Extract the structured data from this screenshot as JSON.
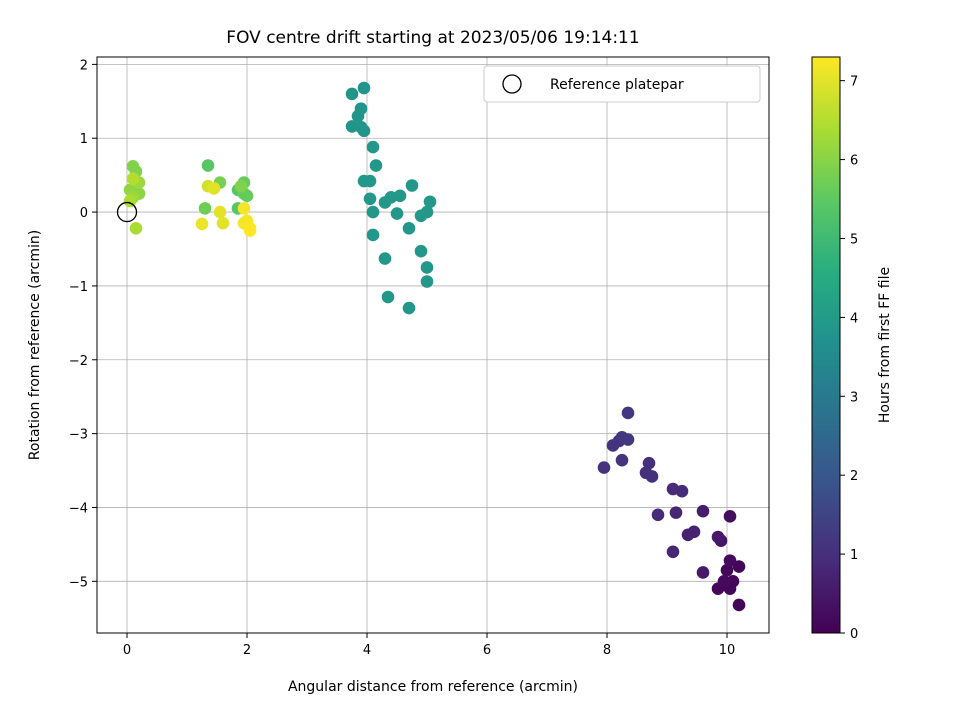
{
  "chart_data": {
    "type": "scatter",
    "title": "FOV centre drift starting at 2023/05/06 19:14:11",
    "xlabel": "Angular distance from reference (arcmin)",
    "ylabel": "Rotation from reference (arcmin)",
    "xlim": [
      -0.5,
      10.7
    ],
    "ylim": [
      -5.7,
      2.1
    ],
    "xticks": [
      0,
      2,
      4,
      6,
      8,
      10
    ],
    "yticks": [
      2,
      1,
      0,
      -1,
      -2,
      -3,
      -4,
      -5
    ],
    "xtick_labels": [
      "0",
      "2",
      "4",
      "6",
      "8",
      "10"
    ],
    "ytick_labels": [
      "2",
      "1",
      "0",
      "−1",
      "−2",
      "−3",
      "−4",
      "−5"
    ],
    "grid": true,
    "legend": {
      "placement": "top-right",
      "entries": [
        "Reference platepar"
      ]
    },
    "reference_point": {
      "x": 0,
      "y": 0,
      "label": "Reference platepar"
    },
    "colorbar": {
      "label": "Hours from first FF file",
      "colormap": "viridis",
      "range": [
        0,
        7.3
      ],
      "ticks": [
        0,
        1,
        2,
        3,
        4,
        5,
        6,
        7
      ],
      "tick_labels": [
        "0",
        "1",
        "2",
        "3",
        "4",
        "5",
        "6",
        "7"
      ]
    },
    "points": [
      {
        "x": 10.2,
        "y": -4.8,
        "h": 0.1
      },
      {
        "x": 10.0,
        "y": -4.85,
        "h": 0.1
      },
      {
        "x": 10.1,
        "y": -5.0,
        "h": 0.1
      },
      {
        "x": 9.85,
        "y": -5.1,
        "h": 0.1
      },
      {
        "x": 10.05,
        "y": -5.1,
        "h": 0.1
      },
      {
        "x": 10.2,
        "y": -5.32,
        "h": 0.1
      },
      {
        "x": 9.95,
        "y": -5.0,
        "h": 0.2
      },
      {
        "x": 10.05,
        "y": -4.72,
        "h": 0.2
      },
      {
        "x": 10.05,
        "y": -4.12,
        "h": 0.3
      },
      {
        "x": 9.9,
        "y": -4.45,
        "h": 0.4
      },
      {
        "x": 9.85,
        "y": -4.4,
        "h": 0.5
      },
      {
        "x": 9.6,
        "y": -4.88,
        "h": 0.5
      },
      {
        "x": 9.6,
        "y": -4.05,
        "h": 0.6
      },
      {
        "x": 9.45,
        "y": -4.33,
        "h": 0.7
      },
      {
        "x": 9.35,
        "y": -4.37,
        "h": 0.7
      },
      {
        "x": 9.1,
        "y": -4.6,
        "h": 0.8
      },
      {
        "x": 9.15,
        "y": -4.07,
        "h": 0.8
      },
      {
        "x": 8.85,
        "y": -4.1,
        "h": 0.9
      },
      {
        "x": 9.25,
        "y": -3.78,
        "h": 0.9
      },
      {
        "x": 9.1,
        "y": -3.75,
        "h": 0.9
      },
      {
        "x": 8.75,
        "y": -3.58,
        "h": 1.0
      },
      {
        "x": 8.65,
        "y": -3.53,
        "h": 1.0
      },
      {
        "x": 8.7,
        "y": -3.4,
        "h": 1.0
      },
      {
        "x": 8.25,
        "y": -3.36,
        "h": 1.1
      },
      {
        "x": 7.95,
        "y": -3.46,
        "h": 1.1
      },
      {
        "x": 8.1,
        "y": -3.16,
        "h": 1.1
      },
      {
        "x": 8.2,
        "y": -3.1,
        "h": 1.1
      },
      {
        "x": 8.25,
        "y": -3.05,
        "h": 1.2
      },
      {
        "x": 8.35,
        "y": -3.08,
        "h": 1.2
      },
      {
        "x": 8.35,
        "y": -2.72,
        "h": 1.2
      },
      {
        "x": 3.75,
        "y": 1.6,
        "h": 3.8
      },
      {
        "x": 3.95,
        "y": 1.68,
        "h": 3.8
      },
      {
        "x": 3.9,
        "y": 1.4,
        "h": 3.8
      },
      {
        "x": 3.85,
        "y": 1.3,
        "h": 3.8
      },
      {
        "x": 3.75,
        "y": 1.16,
        "h": 3.8
      },
      {
        "x": 3.9,
        "y": 1.15,
        "h": 3.8
      },
      {
        "x": 3.95,
        "y": 1.1,
        "h": 3.8
      },
      {
        "x": 4.1,
        "y": 0.88,
        "h": 3.9
      },
      {
        "x": 4.15,
        "y": 0.63,
        "h": 3.9
      },
      {
        "x": 3.95,
        "y": 0.42,
        "h": 3.9
      },
      {
        "x": 4.05,
        "y": 0.42,
        "h": 3.9
      },
      {
        "x": 4.05,
        "y": 0.18,
        "h": 3.9
      },
      {
        "x": 4.4,
        "y": 0.2,
        "h": 3.9
      },
      {
        "x": 4.55,
        "y": 0.22,
        "h": 3.9
      },
      {
        "x": 4.3,
        "y": 0.13,
        "h": 3.9
      },
      {
        "x": 4.75,
        "y": 0.36,
        "h": 3.9
      },
      {
        "x": 4.1,
        "y": 0.0,
        "h": 3.9
      },
      {
        "x": 4.5,
        "y": -0.02,
        "h": 3.9
      },
      {
        "x": 4.9,
        "y": -0.05,
        "h": 3.9
      },
      {
        "x": 5.0,
        "y": 0.0,
        "h": 3.9
      },
      {
        "x": 5.05,
        "y": 0.14,
        "h": 3.9
      },
      {
        "x": 4.7,
        "y": -0.22,
        "h": 3.9
      },
      {
        "x": 4.1,
        "y": -0.31,
        "h": 3.9
      },
      {
        "x": 4.9,
        "y": -0.53,
        "h": 3.9
      },
      {
        "x": 4.3,
        "y": -0.63,
        "h": 3.9
      },
      {
        "x": 5.0,
        "y": -0.75,
        "h": 3.9
      },
      {
        "x": 5.0,
        "y": -0.94,
        "h": 3.9
      },
      {
        "x": 4.35,
        "y": -1.15,
        "h": 3.9
      },
      {
        "x": 4.7,
        "y": -1.3,
        "h": 3.9
      },
      {
        "x": 1.35,
        "y": 0.63,
        "h": 5.4
      },
      {
        "x": 1.85,
        "y": 0.3,
        "h": 5.4
      },
      {
        "x": 1.85,
        "y": 0.05,
        "h": 5.4
      },
      {
        "x": 1.95,
        "y": 0.4,
        "h": 5.6
      },
      {
        "x": 2.0,
        "y": 0.22,
        "h": 5.6
      },
      {
        "x": 1.95,
        "y": 0.25,
        "h": 5.6
      },
      {
        "x": 1.3,
        "y": 0.05,
        "h": 5.7
      },
      {
        "x": 1.55,
        "y": 0.4,
        "h": 5.8
      },
      {
        "x": 1.9,
        "y": 0.35,
        "h": 5.9
      },
      {
        "x": 0.1,
        "y": 0.62,
        "h": 5.9
      },
      {
        "x": 0.15,
        "y": 0.55,
        "h": 5.9
      },
      {
        "x": 0.2,
        "y": 0.25,
        "h": 6.0
      },
      {
        "x": 0.05,
        "y": 0.3,
        "h": 6.1
      },
      {
        "x": 0.2,
        "y": 0.4,
        "h": 6.2
      },
      {
        "x": 0.1,
        "y": 0.2,
        "h": 6.2
      },
      {
        "x": 0.05,
        "y": 0.15,
        "h": 6.4
      },
      {
        "x": 0.15,
        "y": -0.22,
        "h": 6.4
      },
      {
        "x": 0.1,
        "y": 0.45,
        "h": 6.5
      },
      {
        "x": 1.35,
        "y": 0.35,
        "h": 6.8
      },
      {
        "x": 1.45,
        "y": 0.32,
        "h": 7.0
      },
      {
        "x": 1.55,
        "y": 0.0,
        "h": 7.0
      },
      {
        "x": 1.6,
        "y": -0.15,
        "h": 7.0
      },
      {
        "x": 1.25,
        "y": -0.16,
        "h": 7.1
      },
      {
        "x": 1.95,
        "y": 0.05,
        "h": 7.2
      },
      {
        "x": 2.0,
        "y": -0.12,
        "h": 7.2
      },
      {
        "x": 1.95,
        "y": -0.15,
        "h": 7.2
      },
      {
        "x": 2.05,
        "y": -0.22,
        "h": 7.3
      },
      {
        "x": 2.05,
        "y": -0.25,
        "h": 7.3
      }
    ]
  }
}
